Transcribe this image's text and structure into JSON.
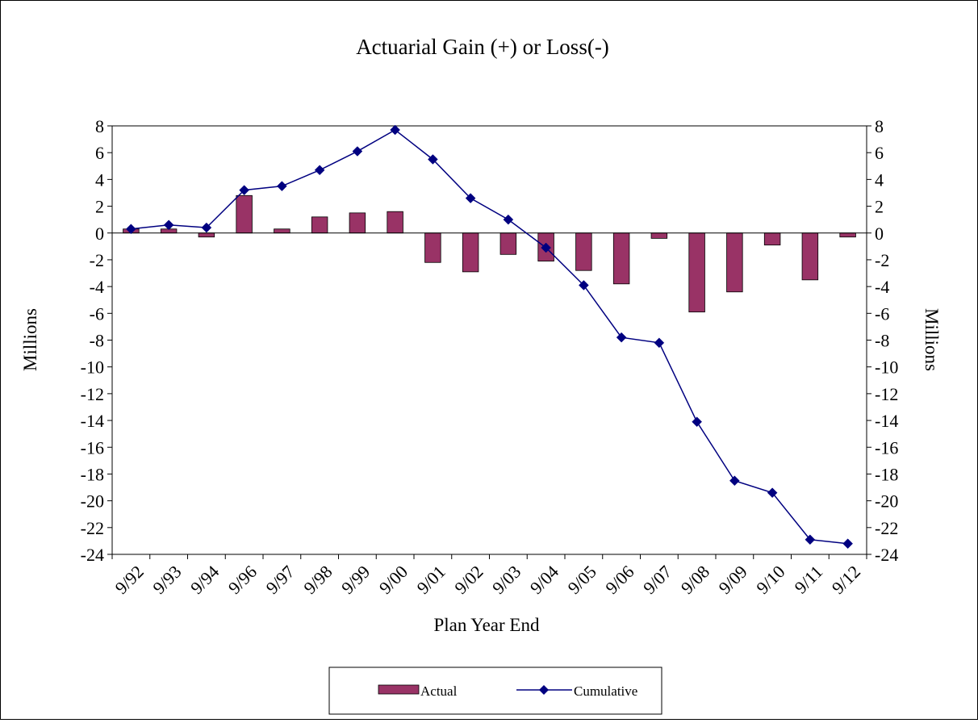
{
  "chart_data": {
    "type": "bar+line",
    "title": "Actuarial Gain (+) or Loss(-)",
    "xlabel": "Plan Year End",
    "ylabel_left": "Millions",
    "ylabel_right": "Millions",
    "ylim": [
      -24,
      8
    ],
    "ytick_step": 2,
    "categories": [
      "9/92",
      "9/93",
      "9/94",
      "9/96",
      "9/97",
      "9/98",
      "9/99",
      "9/00",
      "9/01",
      "9/02",
      "9/03",
      "9/04",
      "9/05",
      "9/06",
      "9/07",
      "9/08",
      "9/09",
      "9/10",
      "9/11",
      "9/12"
    ],
    "series": [
      {
        "name": "Actual",
        "type": "bar",
        "color": "#993366",
        "values": [
          0.3,
          0.3,
          -0.3,
          2.8,
          0.3,
          1.2,
          1.5,
          1.6,
          -2.2,
          -2.9,
          -1.6,
          -2.1,
          -2.8,
          -3.8,
          -0.4,
          -5.9,
          -4.4,
          -0.9,
          -3.5,
          -0.3
        ]
      },
      {
        "name": "Cumulative",
        "type": "line",
        "color": "#000080",
        "marker": "diamond",
        "values": [
          0.3,
          0.6,
          0.4,
          3.2,
          3.5,
          4.7,
          6.1,
          7.7,
          5.5,
          2.6,
          1.0,
          -1.1,
          -3.9,
          -7.8,
          -8.2,
          -14.1,
          -18.5,
          -19.4,
          -22.9,
          -23.2
        ]
      }
    ],
    "grid": false,
    "legend_position": "bottom"
  }
}
